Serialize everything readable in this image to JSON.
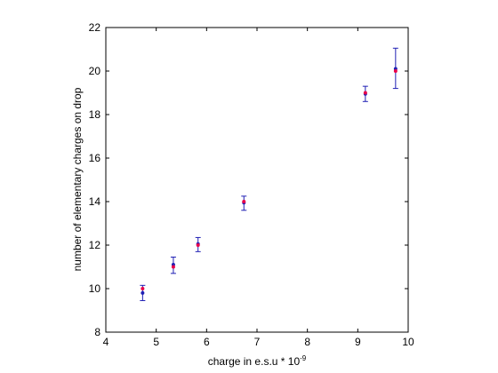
{
  "chart_data": {
    "type": "scatter",
    "xlabel_main": "charge in e.s.u * 10",
    "xlabel_sup": "-9",
    "ylabel": "number of elementary charges on drop",
    "xlim": [
      4,
      10
    ],
    "ylim": [
      8,
      22
    ],
    "xticks": [
      "4",
      "5",
      "6",
      "7",
      "8",
      "9",
      "10"
    ],
    "yticks": [
      "8",
      "10",
      "12",
      "14",
      "16",
      "18",
      "20",
      "22"
    ],
    "grid": false,
    "points": [
      {
        "x": 4.73,
        "y": 9.8,
        "y_lower": 9.45,
        "y_upper": 10.15,
        "ref_y": 10
      },
      {
        "x": 5.34,
        "y": 11.1,
        "y_lower": 10.7,
        "y_upper": 11.45,
        "ref_y": 11
      },
      {
        "x": 5.83,
        "y": 12.05,
        "y_lower": 11.7,
        "y_upper": 12.35,
        "ref_y": 12
      },
      {
        "x": 6.74,
        "y": 13.95,
        "y_lower": 13.6,
        "y_upper": 14.25,
        "ref_y": 14
      },
      {
        "x": 9.15,
        "y": 18.95,
        "y_lower": 18.6,
        "y_upper": 19.3,
        "ref_y": 19
      },
      {
        "x": 9.75,
        "y": 20.1,
        "y_lower": 19.2,
        "y_upper": 21.05,
        "ref_y": 20
      }
    ],
    "colors": {
      "errorbar": "#1f1fb4",
      "marker": "#1f1fb4",
      "ref_marker": "#e8004a"
    }
  }
}
